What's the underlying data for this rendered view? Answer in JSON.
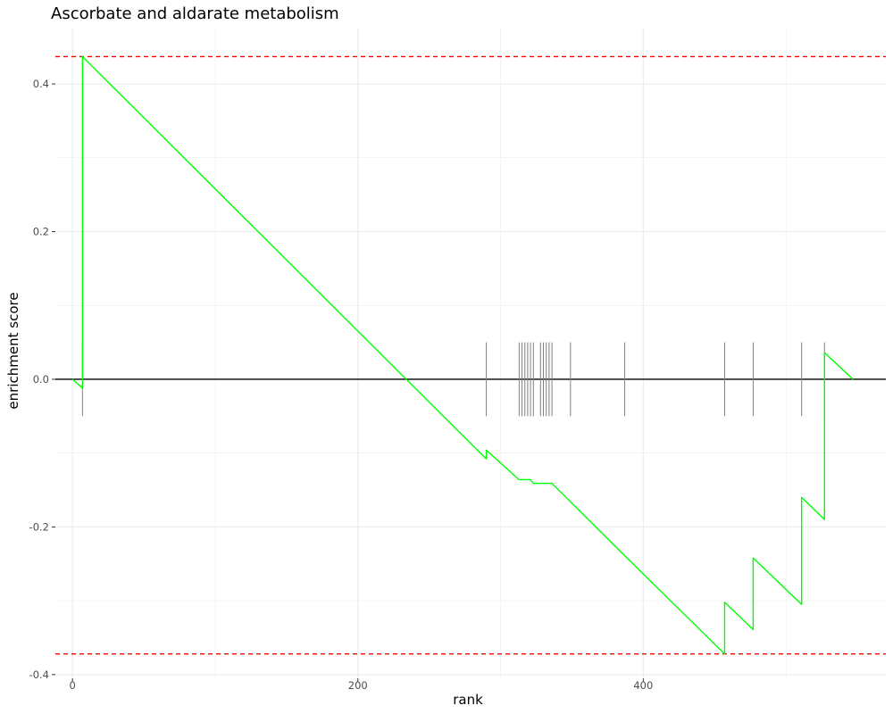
{
  "chart_data": {
    "type": "line",
    "title": "Ascorbate and aldarate metabolism",
    "xlabel": "rank",
    "ylabel": "enrichment score",
    "xlim": [
      -12,
      570
    ],
    "ylim": [
      -0.405,
      0.475
    ],
    "x_ticks": [
      0,
      200,
      400
    ],
    "y_ticks": [
      -0.4,
      -0.2,
      0.0,
      0.2,
      0.4
    ],
    "x_tick_labels": [
      "0",
      "200",
      "400"
    ],
    "y_tick_labels": [
      "-0.4",
      "-0.2",
      "0.0",
      "0.2",
      "0.4"
    ],
    "grid": true,
    "max_es": 0.437,
    "min_es": -0.372,
    "hits": [
      7,
      290,
      313,
      315,
      317,
      319,
      321,
      323,
      328,
      330,
      332,
      334,
      336,
      349,
      387,
      457,
      477,
      511,
      527
    ],
    "series": [
      {
        "x": [
          0,
          7,
          7,
          290,
          290,
          313,
          321,
          323,
          336,
          349,
          387,
          457,
          457,
          477,
          477,
          511,
          511,
          527,
          527,
          547
        ],
        "y": [
          0.0,
          -0.012,
          0.437,
          -0.108,
          -0.096,
          -0.136,
          -0.136,
          -0.141,
          -0.141,
          -0.166,
          -0.239,
          -0.372,
          -0.302,
          -0.339,
          -0.242,
          -0.305,
          -0.16,
          -0.19,
          0.036,
          0.0
        ]
      }
    ],
    "colors": {
      "curve": "#00ff00",
      "extreme_lines": "#ff0000",
      "zero_line": "#000000",
      "hit_ticks": "#808080",
      "grid": "#ebebeb"
    }
  }
}
